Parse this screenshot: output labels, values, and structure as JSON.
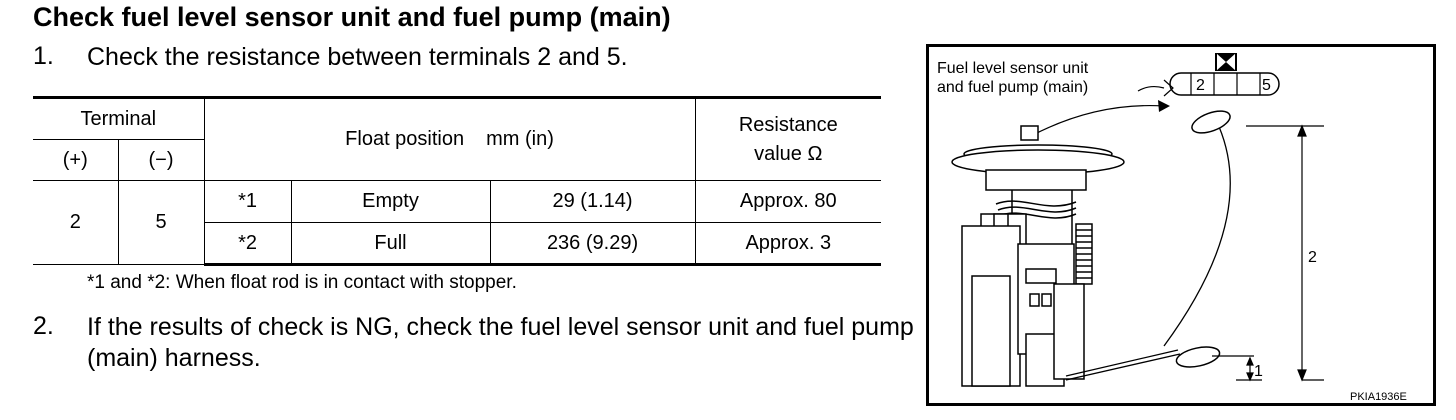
{
  "title": "Check fuel level sensor unit and fuel pump (main)",
  "steps": [
    {
      "number": "1.",
      "text": "Check the resistance between terminals 2 and 5."
    },
    {
      "number": "2.",
      "text": "If the results of check is NG, check the fuel level sensor unit and fuel pump (main) harness."
    }
  ],
  "table": {
    "header_terminal": "Terminal",
    "header_plus": "(+)",
    "header_minus": "(−)",
    "header_float_position": "Float position",
    "header_float_unit": "mm (in)",
    "header_resistance_line1": "Resistance",
    "header_resistance_line2": "value Ω",
    "terminal_plus_value": "2",
    "terminal_minus_value": "5",
    "rows": [
      {
        "mark": "*1",
        "state": "Empty",
        "position": "29 (1.14)",
        "resistance": "Approx. 80"
      },
      {
        "mark": "*2",
        "state": "Full",
        "position": "236 (9.29)",
        "resistance": "Approx. 3"
      }
    ]
  },
  "note": "*1 and *2: When float rod is in contact with stopper.",
  "diagram": {
    "label_line1": "Fuel level sensor unit",
    "label_line2": "and fuel pump (main)",
    "connector_terminal_a": "2",
    "connector_terminal_b": "5",
    "dimension_2": "2",
    "dimension_1": "1",
    "figure_code": "PKIA1936E"
  }
}
